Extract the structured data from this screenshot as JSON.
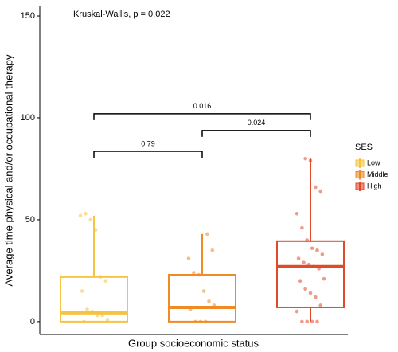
{
  "chart_data": {
    "type": "box",
    "annotation": "Kruskal-Wallis, p = 0.022",
    "x_label": "Group socioeconomic status",
    "y_label": "Average time physical and/or occupational therapy",
    "ylim": [
      -6.3,
      154.7
    ],
    "yticks": [
      0,
      50,
      100,
      150
    ],
    "grid": false,
    "legend_title": "SES",
    "legend_position": "right",
    "series": [
      {
        "name": "Low",
        "color": "#f6c342",
        "whisker_low": 0,
        "q1": 0,
        "median": 4.3,
        "q3": 21.9,
        "whisker_high": 52,
        "points": [
          52,
          53,
          50,
          45,
          22,
          20,
          15,
          6,
          5,
          3,
          3,
          1,
          0
        ]
      },
      {
        "name": "Middle",
        "color": "#f08a24",
        "whisker_low": 0,
        "q1": 0,
        "median": 7,
        "q3": 23,
        "whisker_high": 43,
        "points": [
          43,
          35,
          31,
          24,
          23,
          15,
          10,
          8,
          6,
          0,
          0,
          0
        ]
      },
      {
        "name": "High",
        "color": "#e04a28",
        "whisker_low": 0,
        "q1": 7,
        "median": 27,
        "q3": 39.5,
        "whisker_high": 80,
        "points": [
          80,
          79,
          66,
          64,
          53,
          46,
          40,
          36,
          35,
          33,
          31,
          29,
          28,
          27,
          26,
          21,
          20,
          16,
          14,
          12,
          8,
          5,
          0,
          0,
          0,
          0
        ]
      }
    ],
    "comparisons": [
      {
        "label": "0.79",
        "y": 83.6
      },
      {
        "label": "0.024",
        "y": 93.8
      },
      {
        "label": "0.016",
        "y": 102
      }
    ]
  }
}
